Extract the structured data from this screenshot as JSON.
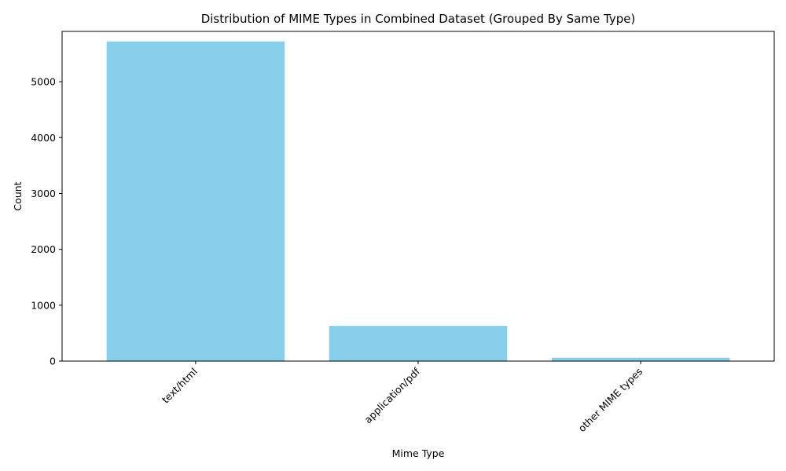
{
  "chart_data": {
    "type": "bar",
    "title": "Distribution of MIME Types in Combined Dataset (Grouped By Same Type)",
    "xlabel": "Mime Type",
    "ylabel": "Count",
    "categories": [
      "text/html",
      "application/pdf",
      "other MIME types"
    ],
    "values": [
      5720,
      630,
      60
    ],
    "ylim": [
      0,
      5900
    ],
    "yticks": [
      0,
      1000,
      2000,
      3000,
      4000,
      5000
    ],
    "bar_color": "#87ceeb",
    "grid": false,
    "legend": "none"
  }
}
